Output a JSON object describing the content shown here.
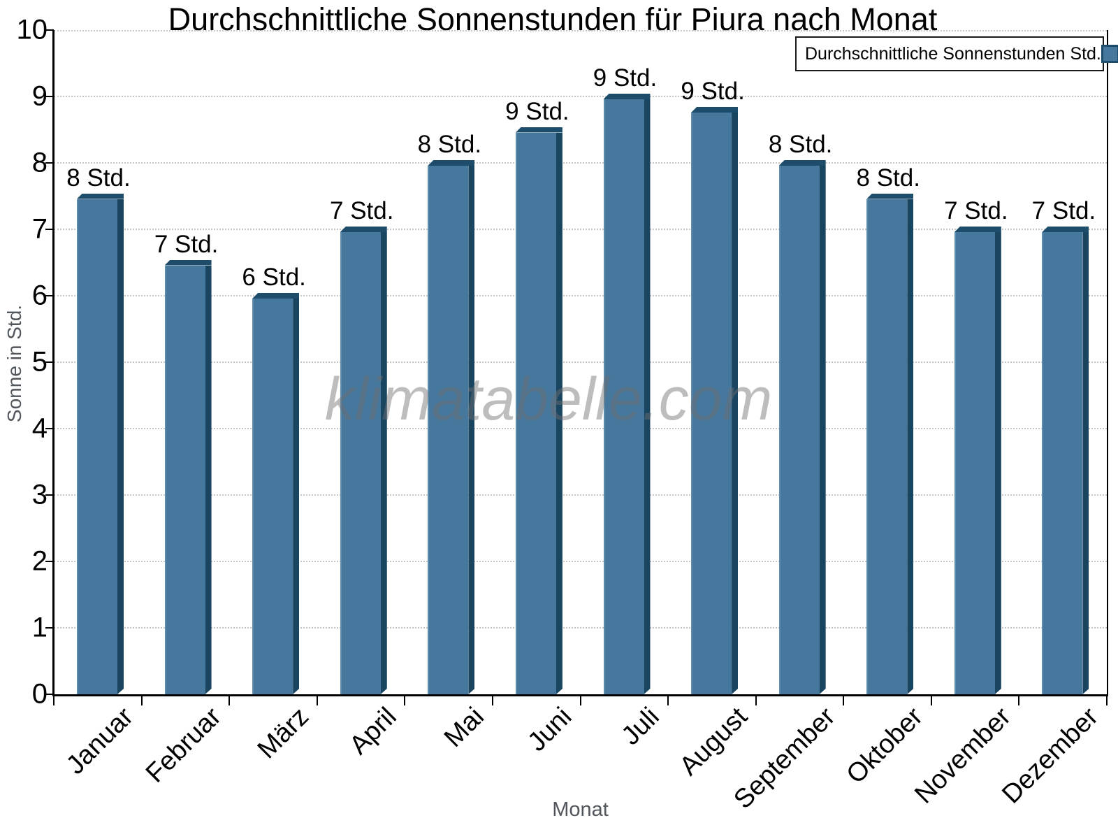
{
  "chart_data": {
    "type": "bar",
    "title": "Durchschnittliche Sonnenstunden für Piura nach Monat",
    "xlabel": "Monat",
    "ylabel": "Sonne in Std.",
    "legend": [
      "Durchschnittliche Sonnenstunden Std."
    ],
    "legend_position": "top-right",
    "watermark": "klimatabelle.com",
    "categories": [
      "Januar",
      "Februar",
      "März",
      "April",
      "Mai",
      "Juni",
      "Juli",
      "August",
      "September",
      "Oktober",
      "November",
      "Dezember"
    ],
    "series": [
      {
        "name": "Durchschnittliche Sonnenstunden Std.",
        "values": [
          7.5,
          6.5,
          6.0,
          7.0,
          8.0,
          8.5,
          9.0,
          8.8,
          8.0,
          7.5,
          7.0,
          7.0
        ],
        "bar_labels": [
          "8 Std.",
          "7 Std.",
          "6 Std.",
          "7 Std.",
          "8 Std.",
          "9 Std.",
          "9 Std.",
          "9 Std.",
          "8 Std.",
          "8 Std.",
          "7 Std.",
          "7 Std."
        ]
      }
    ],
    "ylim": [
      0,
      10
    ],
    "yticks": [
      0,
      1,
      2,
      3,
      4,
      5,
      6,
      7,
      8,
      9,
      10
    ],
    "grid": "horizontal-dotted",
    "colors": {
      "bar_face": "#46789E",
      "bar_top": "#1E4D6B",
      "bar_side": "#1A4561",
      "bar_highlight": "#5D8CAD",
      "gridline": "#c6c6c6",
      "axis": "#000000",
      "axis_title": "#51565c",
      "watermark_text": "#b5b5b5"
    }
  }
}
